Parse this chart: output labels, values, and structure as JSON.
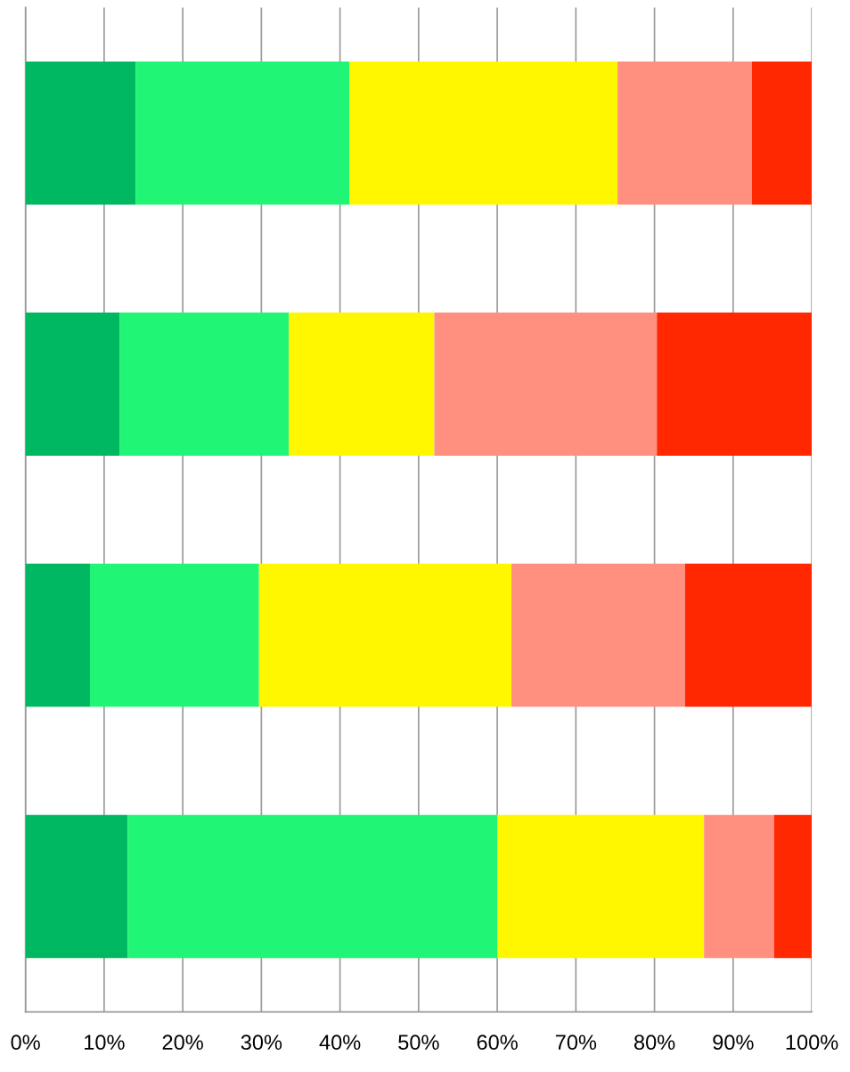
{
  "chart_data": {
    "type": "bar",
    "orientation": "horizontal",
    "stacked": true,
    "categories": [
      null,
      null,
      null,
      null
    ],
    "series": [
      {
        "color": "#00b862",
        "values": [
          14.0,
          12.0,
          8.2,
          13.0
        ]
      },
      {
        "color": "#20f575",
        "values": [
          27.2,
          21.5,
          21.5,
          47.0
        ]
      },
      {
        "color": "#fff700",
        "values": [
          34.1,
          18.5,
          32.1,
          26.3
        ]
      },
      {
        "color": "#ff9080",
        "values": [
          17.1,
          28.3,
          22.1,
          8.9
        ]
      },
      {
        "color": "#ff2800",
        "values": [
          7.6,
          19.7,
          16.1,
          4.8
        ]
      }
    ],
    "xlim": [
      0,
      100
    ],
    "xticks": [
      {
        "value": 0,
        "label": "0%"
      },
      {
        "value": 10,
        "label": "10%"
      },
      {
        "value": 20,
        "label": "20%"
      },
      {
        "value": 30,
        "label": "30%"
      },
      {
        "value": 40,
        "label": "40%"
      },
      {
        "value": 50,
        "label": "50%"
      },
      {
        "value": 60,
        "label": "60%"
      },
      {
        "value": 70,
        "label": "70%"
      },
      {
        "value": 80,
        "label": "80%"
      },
      {
        "value": 90,
        "label": "90%"
      },
      {
        "value": 100,
        "label": "100%"
      }
    ],
    "grid": "x"
  }
}
